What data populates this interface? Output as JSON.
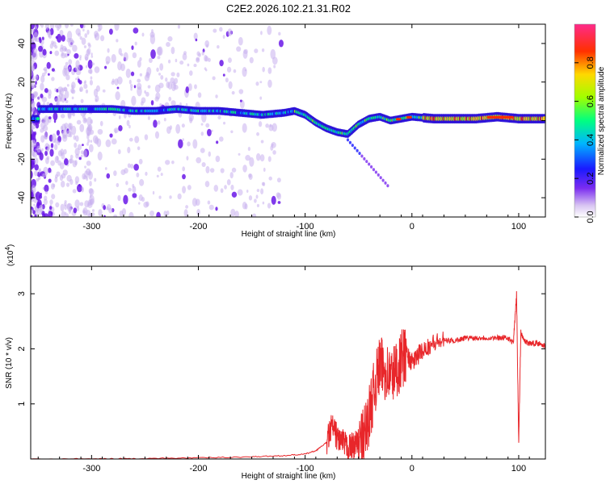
{
  "title": "C2E2.2026.102.21.31.R02",
  "chart_data": [
    {
      "type": "heatmap",
      "title": "C2E2.2026.102.21.31.R02",
      "xlabel": "Height of straight line (km)",
      "ylabel": "Frequency (Hz)",
      "xlim": [
        -357,
        125
      ],
      "ylim": [
        -50,
        50
      ],
      "xticks": [
        -300,
        -200,
        -100,
        0,
        100
      ],
      "yticks": [
        -40,
        -20,
        0,
        20,
        40
      ],
      "xtick_labels": [
        "-300",
        "-200",
        "-100",
        "0",
        "100"
      ],
      "ytick_labels": [
        "-40",
        "-20",
        "0",
        "20",
        "40"
      ],
      "description_series": {
        "name": "Dominant frequency track",
        "x": [
          -350,
          -320,
          -300,
          -280,
          -260,
          -240,
          -220,
          -200,
          -180,
          -160,
          -140,
          -120,
          -110,
          -100,
          -90,
          -80,
          -70,
          -60,
          -50,
          -40,
          -30,
          -20,
          -10,
          0,
          20,
          40,
          60,
          80,
          100,
          120
        ],
        "y": [
          6,
          6,
          6,
          6,
          5,
          5,
          6,
          5,
          5,
          4,
          3,
          4,
          5,
          3,
          -1,
          -4,
          -6,
          -7,
          -2,
          1,
          2,
          0,
          1,
          2,
          1,
          1,
          1,
          2,
          1,
          1
        ]
      },
      "colorbar": {
        "label": "Normalized spectral amplitude",
        "range": [
          0.0,
          1.0
        ],
        "ticks": [
          0.0,
          0.2,
          0.4,
          0.6,
          0.8
        ],
        "tick_labels": [
          "0.0",
          "0.2",
          "0.4",
          "0.6",
          "0.8"
        ]
      }
    },
    {
      "type": "line",
      "xlabel": "Height of straight line (km)",
      "ylabel": "SNR (10 * v/v)",
      "exponent_base": "(x10",
      "exponent_power": "4",
      "exponent_close": ")",
      "xlim": [
        -357,
        125
      ],
      "ylim": [
        0,
        3.5
      ],
      "xticks": [
        -300,
        -200,
        -100,
        0,
        100
      ],
      "yticks": [
        1,
        2,
        3
      ],
      "xtick_labels": [
        "-300",
        "-200",
        "-100",
        "0",
        "100"
      ],
      "ytick_labels": [
        "1",
        "2",
        "3"
      ],
      "series": [
        {
          "name": "SNR",
          "color": "#e8262a",
          "x": [
            -357,
            -300,
            -250,
            -200,
            -150,
            -120,
            -100,
            -90,
            -80,
            -75,
            -70,
            -65,
            -60,
            -55,
            -50,
            -45,
            -40,
            -35,
            -30,
            -25,
            -20,
            -15,
            -10,
            -5,
            0,
            5,
            10,
            20,
            30,
            40,
            50,
            60,
            70,
            80,
            85,
            90,
            95,
            98,
            100,
            102,
            105,
            110,
            115,
            120,
            125
          ],
          "y": [
            0.0,
            0.0,
            0.01,
            0.02,
            0.04,
            0.06,
            0.09,
            0.15,
            0.3,
            0.6,
            0.4,
            0.3,
            0.2,
            0.25,
            0.3,
            0.4,
            0.8,
            1.3,
            1.7,
            1.6,
            1.5,
            1.6,
            1.8,
            1.9,
            1.75,
            1.85,
            2.0,
            2.1,
            2.15,
            2.15,
            2.2,
            2.2,
            2.2,
            2.2,
            2.2,
            2.2,
            2.1,
            3.0,
            0.3,
            2.3,
            2.15,
            2.1,
            2.1,
            2.1,
            2.05
          ]
        }
      ]
    }
  ]
}
